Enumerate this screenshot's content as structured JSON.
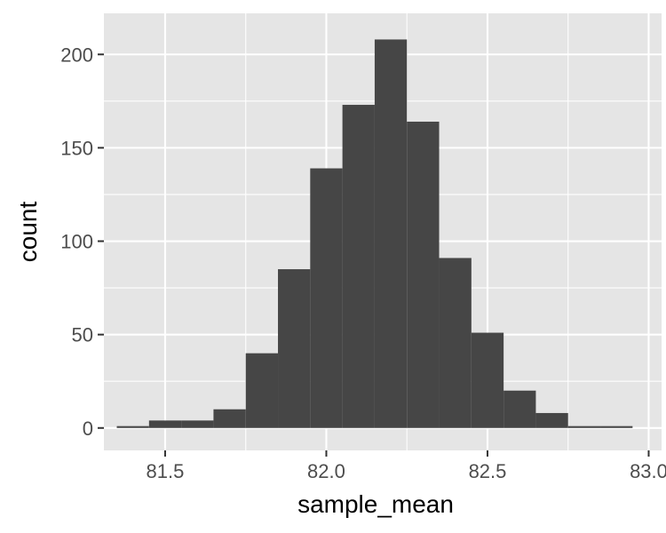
{
  "chart_data": {
    "type": "histogram",
    "title": "",
    "xlabel": "sample_mean",
    "ylabel": "count",
    "bin_width": 0.1,
    "bin_centers": [
      81.4,
      81.5,
      81.6,
      81.7,
      81.8,
      81.9,
      82.0,
      82.1,
      82.2,
      82.3,
      82.4,
      82.5,
      82.6,
      82.7,
      82.8,
      82.9
    ],
    "values": [
      1,
      4,
      4,
      10,
      40,
      85,
      139,
      173,
      208,
      164,
      91,
      51,
      20,
      8,
      1,
      1
    ],
    "xlim": [
      81.31,
      83.04
    ],
    "ylim": [
      -12,
      222
    ],
    "x_ticks": [
      81.5,
      82.0,
      82.5,
      83.0
    ],
    "x_tick_labels": [
      "81.5",
      "82.0",
      "82.5",
      "83.0"
    ],
    "y_ticks": [
      0,
      50,
      100,
      150,
      200
    ],
    "y_tick_labels": [
      "0",
      "50",
      "100",
      "150",
      "200"
    ],
    "grid": true,
    "colors": {
      "panel_background": "#e5e5e5",
      "grid": "#ffffff",
      "bar_fill": "#464646",
      "tick_label": "#4d4d4d",
      "axis_title": "#000000"
    }
  }
}
